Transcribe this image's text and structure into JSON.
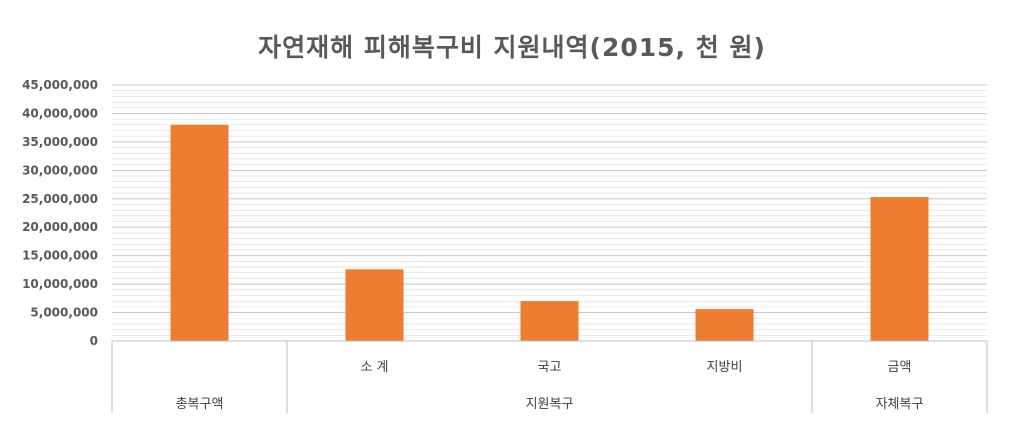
{
  "chart_data": {
    "type": "bar",
    "title": "자연재해 피해복구비 지원내역(2015, 천 원)",
    "xlabel": "",
    "ylabel": "",
    "ylim": [
      0,
      45000000
    ],
    "yticks": [
      0,
      5000000,
      10000000,
      15000000,
      20000000,
      25000000,
      30000000,
      35000000,
      40000000,
      45000000
    ],
    "ytick_labels": [
      "0",
      "5,000,000",
      "10,000,000",
      "15,000,000",
      "20,000,000",
      "25,000,000",
      "30,000,000",
      "35,000,000",
      "40,000,000",
      "45,000,000"
    ],
    "categories": [
      "",
      "소 계",
      "국고",
      "지방비",
      "금액"
    ],
    "groups": [
      {
        "label": "총복구액",
        "span": 1
      },
      {
        "label": "지원복구",
        "span": 3
      },
      {
        "label": "자체복구",
        "span": 1
      }
    ],
    "values": [
      38000000,
      12600000,
      7000000,
      5600000,
      25300000
    ],
    "bar_color": "#ED7D31",
    "grid": true,
    "grid_color": "#D9D9D9",
    "legend": "none"
  }
}
